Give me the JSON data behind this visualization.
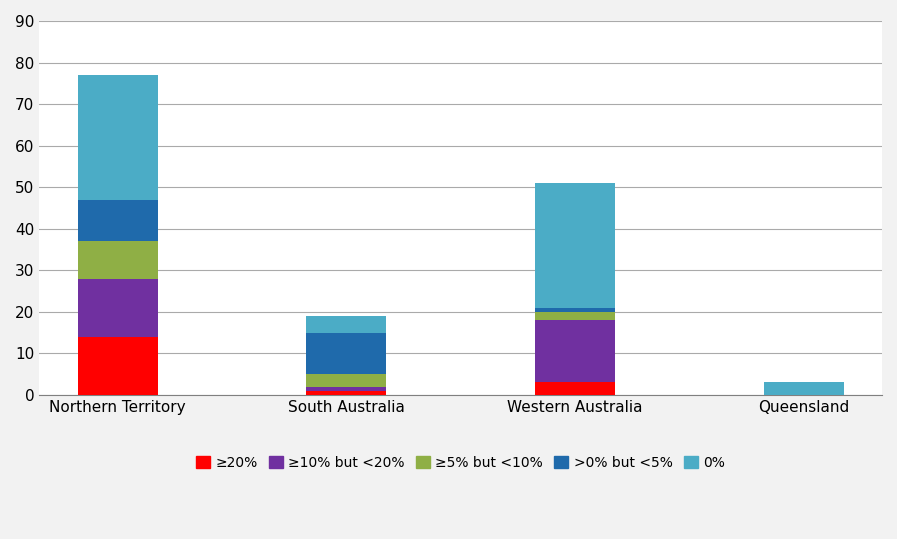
{
  "categories": [
    "Northern Territory",
    "South Australia",
    "Western Australia",
    "Queensland"
  ],
  "series": {
    "ge20": [
      14,
      1,
      3,
      0
    ],
    "ge10lt20": [
      14,
      1,
      15,
      0
    ],
    "ge5lt10": [
      9,
      3,
      2,
      0
    ],
    "gt0lt5": [
      10,
      10,
      1,
      0
    ],
    "zero": [
      30,
      4,
      30,
      3
    ]
  },
  "colors": {
    "ge20": "#FF0000",
    "ge10lt20": "#7030A0",
    "ge5lt10": "#8FAF45",
    "gt0lt5": "#1F6AAB",
    "zero": "#4BACC6"
  },
  "legend_labels": {
    "ge20": "≥20%",
    "ge10lt20": "≥10% but <20%",
    "ge5lt10": "≥5% but <10%",
    "gt0lt5": ">0% but <5%",
    "zero": "0%"
  },
  "ylim": [
    0,
    90
  ],
  "yticks": [
    0,
    10,
    20,
    30,
    40,
    50,
    60,
    70,
    80,
    90
  ],
  "background_color": "#F2F2F2",
  "plot_background_color": "#FFFFFF",
  "grid_color": "#AAAAAA",
  "bar_width": 0.35
}
